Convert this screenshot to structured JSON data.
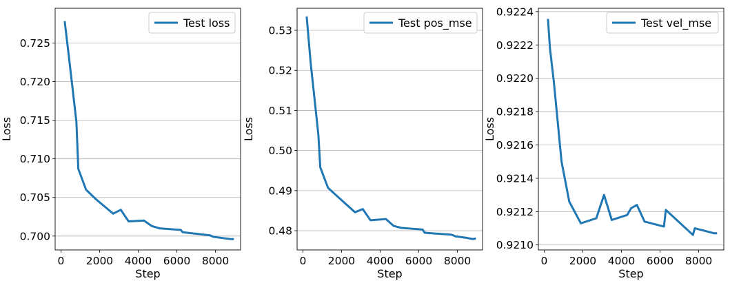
{
  "chart_data": [
    {
      "type": "line",
      "xlabel": "Step",
      "ylabel": "Loss",
      "xlim": [
        -300,
        9300
      ],
      "ylim": [
        0.6982,
        0.7295
      ],
      "xticks": [
        0,
        2000,
        4000,
        6000,
        8000
      ],
      "yticks": [
        0.7,
        0.705,
        0.71,
        0.715,
        0.72,
        0.725
      ],
      "ytick_labels": [
        "0.700",
        "0.705",
        "0.710",
        "0.715",
        "0.720",
        "0.725"
      ],
      "grid": "y",
      "legend": "top-right",
      "series": [
        {
          "name": "Test loss",
          "color": "#1f77b4",
          "x": [
            200,
            400,
            800,
            900,
            1300,
            1800,
            2700,
            3100,
            3500,
            4300,
            4700,
            5100,
            6200,
            6300,
            7700,
            7900,
            8500,
            8800,
            8900
          ],
          "y": [
            0.7277,
            0.7235,
            0.7148,
            0.7087,
            0.706,
            0.7048,
            0.7029,
            0.7034,
            0.7019,
            0.702,
            0.7013,
            0.701,
            0.7008,
            0.7005,
            0.7001,
            0.6999,
            0.6997,
            0.6996,
            0.6996
          ]
        }
      ]
    },
    {
      "type": "line",
      "xlabel": "Step",
      "ylabel": "Loss",
      "xlim": [
        -300,
        9300
      ],
      "ylim": [
        0.4752,
        0.5355
      ],
      "xticks": [
        0,
        2000,
        4000,
        6000,
        8000
      ],
      "yticks": [
        0.48,
        0.49,
        0.5,
        0.51,
        0.52,
        0.53
      ],
      "ytick_labels": [
        "0.48",
        "0.49",
        "0.50",
        "0.51",
        "0.52",
        "0.53"
      ],
      "grid": "y",
      "legend": "top-right",
      "series": [
        {
          "name": "Test pos_mse",
          "color": "#1f77b4",
          "x": [
            200,
            400,
            800,
            900,
            1300,
            1800,
            2700,
            3100,
            3500,
            4300,
            4700,
            5100,
            6200,
            6300,
            7700,
            7900,
            8500,
            8800,
            8900
          ],
          "y": [
            0.5332,
            0.522,
            0.504,
            0.4958,
            0.4907,
            0.4885,
            0.4846,
            0.4854,
            0.4826,
            0.4829,
            0.4812,
            0.4807,
            0.4803,
            0.4795,
            0.479,
            0.4786,
            0.4782,
            0.4779,
            0.478
          ]
        }
      ]
    },
    {
      "type": "line",
      "xlabel": "Step",
      "ylabel": "Loss",
      "xlim": [
        -300,
        9300
      ],
      "ylim": [
        0.92097,
        0.92242
      ],
      "xticks": [
        0,
        2000,
        4000,
        6000,
        8000
      ],
      "yticks": [
        0.921,
        0.9212,
        0.9214,
        0.9216,
        0.9218,
        0.922,
        0.9222,
        0.9224
      ],
      "ytick_labels": [
        "0.9210",
        "0.9212",
        "0.9214",
        "0.9216",
        "0.9218",
        "0.9220",
        "0.9222",
        "0.9224"
      ],
      "grid": "y",
      "legend": "top-right",
      "series": [
        {
          "name": "Test vel_mse",
          "color": "#1f77b4",
          "x": [
            200,
            300,
            500,
            900,
            1300,
            1900,
            2700,
            3100,
            3500,
            4300,
            4500,
            4800,
            5200,
            6200,
            6300,
            7700,
            7800,
            8800,
            8900
          ],
          "y": [
            0.92235,
            0.92218,
            0.92198,
            0.9215,
            0.92126,
            0.92113,
            0.92116,
            0.9213,
            0.92115,
            0.92118,
            0.92122,
            0.92124,
            0.92114,
            0.92111,
            0.92121,
            0.92106,
            0.9211,
            0.92107,
            0.92107
          ]
        }
      ]
    }
  ]
}
